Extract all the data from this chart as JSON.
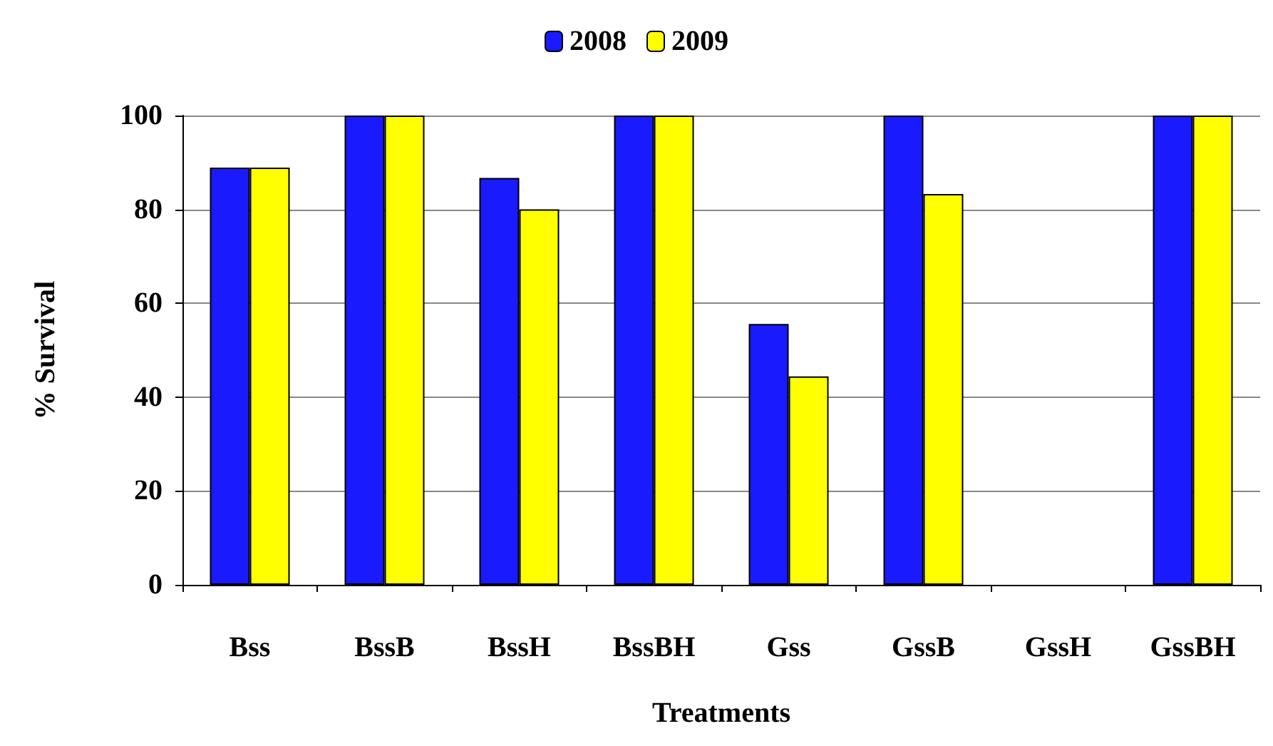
{
  "chart_data": {
    "type": "bar",
    "xlabel": "Treatments",
    "ylabel": "% Survival",
    "categories": [
      "Bss",
      "BssB",
      "BssH",
      "BssBH",
      "Gss",
      "GssB",
      "GssH",
      "GssBH"
    ],
    "series": [
      {
        "name": "2008",
        "color": "#1a1aff",
        "values": [
          88.9,
          100,
          86.7,
          100,
          55.6,
          100,
          0,
          100
        ]
      },
      {
        "name": "2009",
        "color": "#ffff00",
        "values": [
          88.9,
          100,
          80,
          100,
          44.4,
          83.3,
          0,
          100
        ]
      }
    ],
    "ylim": [
      0,
      100
    ],
    "yticks": [
      0,
      20,
      40,
      60,
      80,
      100
    ],
    "grid": "y",
    "legend": "top"
  }
}
